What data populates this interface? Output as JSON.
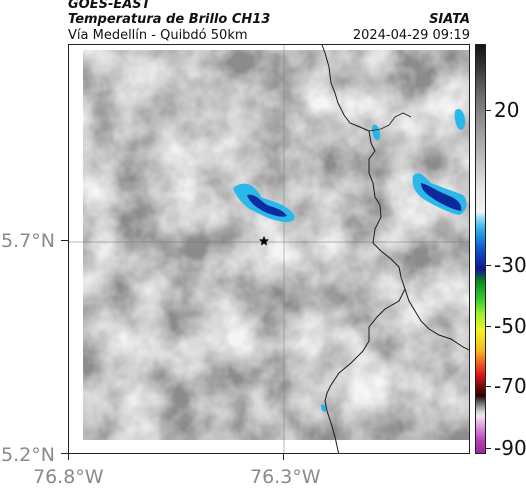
{
  "header": {
    "source": "GOES-EAST",
    "product": "Temperatura de Brillo CH13",
    "org": "SIATA",
    "subtitle": "Vía Medellín - Quibdó 50km",
    "datetime": "2024-04-29 09:19"
  },
  "map": {
    "lat_labels": [
      "5.7°N",
      "5.2°N"
    ],
    "lon_labels": [
      "76.8°W",
      "76.3°W"
    ],
    "marker_icon": "star-icon"
  },
  "colorbar": {
    "ticks": [
      "20",
      "-30",
      "-50",
      "-70",
      "-90"
    ]
  },
  "colors": {
    "cold_cloud_light": "#27b9e8",
    "cold_cloud_dark": "#0a2a9a",
    "boundary": "#1a1a1a"
  }
}
